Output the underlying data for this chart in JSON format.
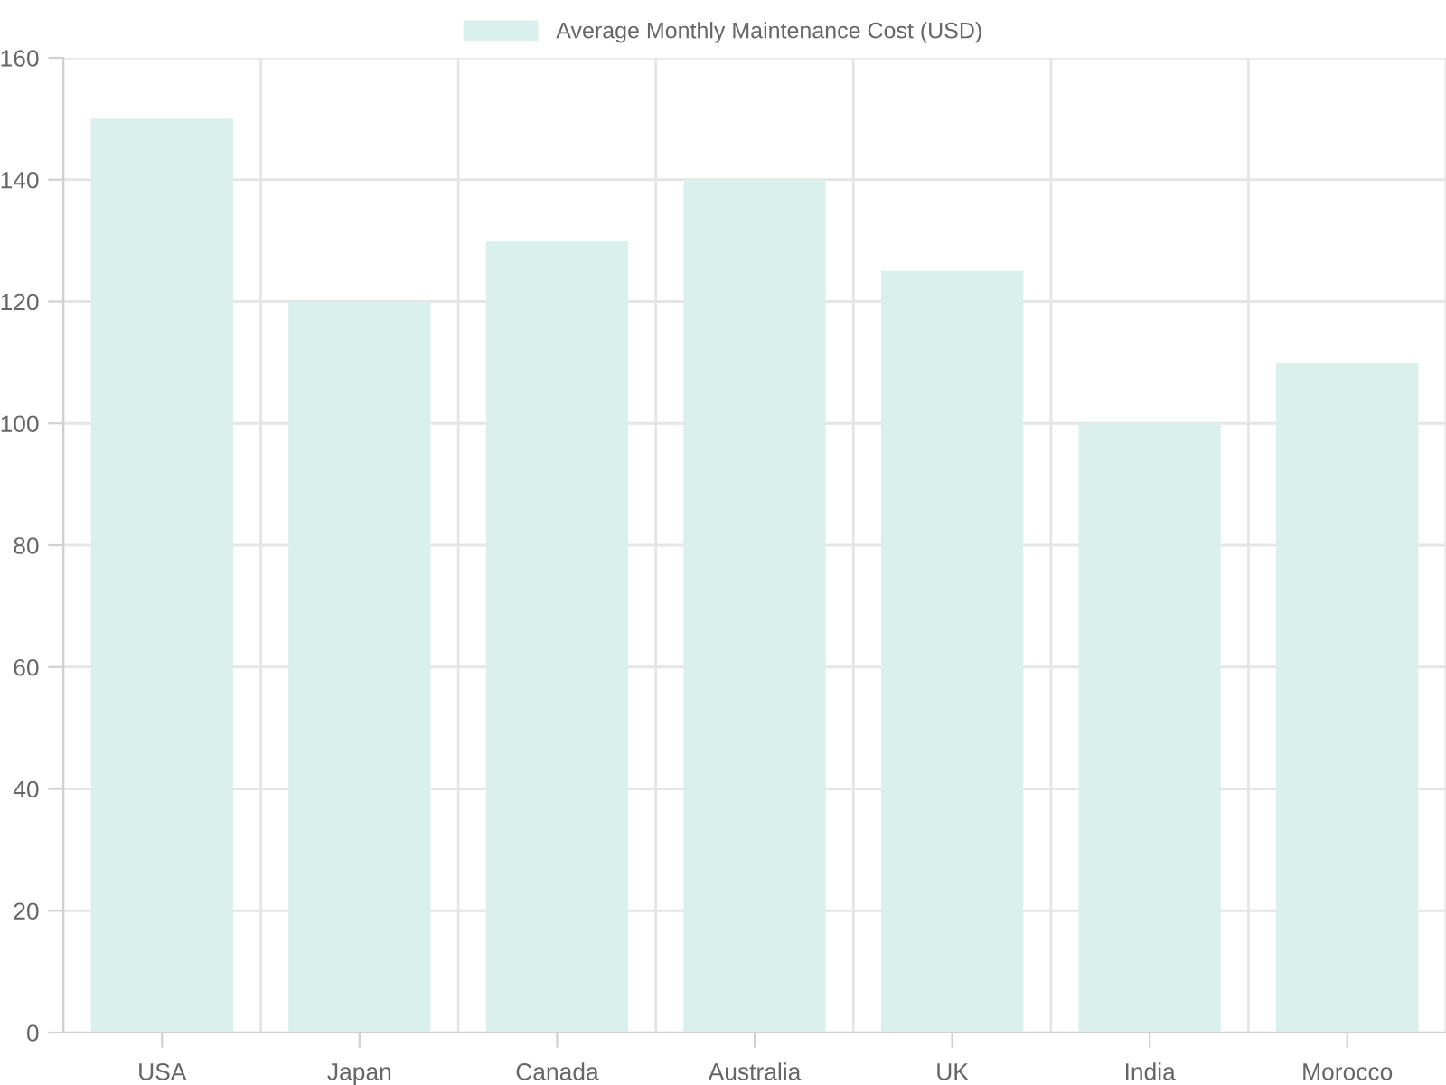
{
  "chart_data": {
    "type": "bar",
    "categories": [
      "USA",
      "Japan",
      "Canada",
      "Australia",
      "UK",
      "India",
      "Morocco"
    ],
    "series": [
      {
        "name": "Average Monthly Maintenance Cost (USD)",
        "color": "#d9f0ed",
        "values": [
          150,
          120,
          130,
          140,
          125,
          100,
          110
        ]
      }
    ],
    "ylim": [
      0,
      160
    ],
    "yticks": [
      0,
      20,
      40,
      60,
      80,
      100,
      120,
      140,
      160
    ],
    "grid": true,
    "legend": "top"
  }
}
